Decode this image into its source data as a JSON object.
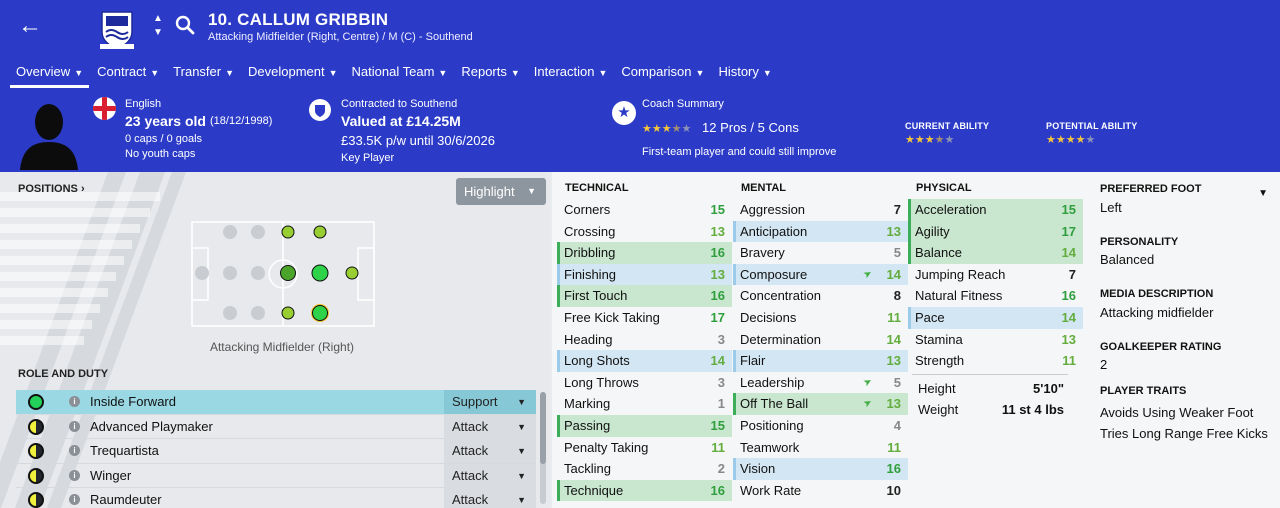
{
  "header": {
    "player_name": "10. CALLUM GRIBBIN",
    "subtitle": "Attacking Midfielder (Right, Centre) / M (C) - Southend",
    "back_icon": "back-arrow-icon",
    "crest_icon": "club-crest-icon"
  },
  "tabs": [
    {
      "label": "Overview",
      "active": true
    },
    {
      "label": "Contract"
    },
    {
      "label": "Transfer"
    },
    {
      "label": "Development"
    },
    {
      "label": "National Team"
    },
    {
      "label": "Reports"
    },
    {
      "label": "Interaction"
    },
    {
      "label": "Comparison"
    },
    {
      "label": "History"
    }
  ],
  "info": {
    "nationality": "English",
    "age": "23 years old",
    "dob": "(18/12/1998)",
    "caps": "0 caps / 0 goals",
    "youth_caps": "No youth caps",
    "contract_label": "Contracted to Southend",
    "value": "Valued at £14.25M",
    "wage": "£33.5K p/w until 30/6/2026",
    "squad_status": "Key Player",
    "coach_label": "Coach Summary",
    "coach_pros": "12 Pros / 5 Cons",
    "coach_desc": "First-team player and could still improve",
    "coach_stars": 3.5,
    "current_ability_label": "CURRENT ABILITY",
    "current_ability_stars": 3.5,
    "potential_ability_label": "POTENTIAL ABILITY",
    "potential_ability_stars": 4
  },
  "positions": {
    "label": "POSITIONS ›",
    "highlight_label": "Highlight",
    "caption": "Attacking Midfielder (Right)"
  },
  "roles": {
    "label": "ROLE AND DUTY",
    "items": [
      {
        "name": "Inside Forward",
        "duty": "Support",
        "ring": "full",
        "selected": true
      },
      {
        "name": "Advanced Playmaker",
        "duty": "Attack",
        "ring": "half"
      },
      {
        "name": "Trequartista",
        "duty": "Attack",
        "ring": "half"
      },
      {
        "name": "Winger",
        "duty": "Attack",
        "ring": "half"
      },
      {
        "name": "Raumdeuter",
        "duty": "Attack",
        "ring": "half"
      }
    ]
  },
  "technical": {
    "label": "TECHNICAL",
    "items": [
      {
        "name": "Corners",
        "value": 15,
        "hl": "",
        "arrow": false
      },
      {
        "name": "Crossing",
        "value": 13,
        "hl": "",
        "arrow": false
      },
      {
        "name": "Dribbling",
        "value": 16,
        "hl": "green",
        "arrow": false
      },
      {
        "name": "Finishing",
        "value": 13,
        "hl": "blue",
        "arrow": false
      },
      {
        "name": "First Touch",
        "value": 16,
        "hl": "green",
        "arrow": false
      },
      {
        "name": "Free Kick Taking",
        "value": 17,
        "hl": "",
        "arrow": false
      },
      {
        "name": "Heading",
        "value": 3,
        "hl": "",
        "arrow": false
      },
      {
        "name": "Long Shots",
        "value": 14,
        "hl": "blue",
        "arrow": false
      },
      {
        "name": "Long Throws",
        "value": 3,
        "hl": "",
        "arrow": false
      },
      {
        "name": "Marking",
        "value": 1,
        "hl": "",
        "arrow": false
      },
      {
        "name": "Passing",
        "value": 15,
        "hl": "green",
        "arrow": false
      },
      {
        "name": "Penalty Taking",
        "value": 11,
        "hl": "",
        "arrow": false
      },
      {
        "name": "Tackling",
        "value": 2,
        "hl": "",
        "arrow": false
      },
      {
        "name": "Technique",
        "value": 16,
        "hl": "green",
        "arrow": false
      }
    ]
  },
  "mental": {
    "label": "MENTAL",
    "items": [
      {
        "name": "Aggression",
        "value": 7,
        "hl": "",
        "arrow": false
      },
      {
        "name": "Anticipation",
        "value": 13,
        "hl": "blue",
        "arrow": false
      },
      {
        "name": "Bravery",
        "value": 5,
        "hl": "",
        "arrow": false
      },
      {
        "name": "Composure",
        "value": 14,
        "hl": "blue",
        "arrow": true
      },
      {
        "name": "Concentration",
        "value": 8,
        "hl": "",
        "arrow": false
      },
      {
        "name": "Decisions",
        "value": 11,
        "hl": "",
        "arrow": false
      },
      {
        "name": "Determination",
        "value": 14,
        "hl": "",
        "arrow": false
      },
      {
        "name": "Flair",
        "value": 13,
        "hl": "blue",
        "arrow": false
      },
      {
        "name": "Leadership",
        "value": 5,
        "hl": "",
        "arrow": true
      },
      {
        "name": "Off The Ball",
        "value": 13,
        "hl": "green",
        "arrow": true
      },
      {
        "name": "Positioning",
        "value": 4,
        "hl": "",
        "arrow": false
      },
      {
        "name": "Teamwork",
        "value": 11,
        "hl": "",
        "arrow": false
      },
      {
        "name": "Vision",
        "value": 16,
        "hl": "blue",
        "arrow": false
      },
      {
        "name": "Work Rate",
        "value": 10,
        "hl": "",
        "arrow": false
      }
    ]
  },
  "physical": {
    "label": "PHYSICAL",
    "items": [
      {
        "name": "Acceleration",
        "value": 15,
        "hl": "green",
        "arrow": false
      },
      {
        "name": "Agility",
        "value": 17,
        "hl": "green",
        "arrow": false
      },
      {
        "name": "Balance",
        "value": 14,
        "hl": "green",
        "arrow": false
      },
      {
        "name": "Jumping Reach",
        "value": 7,
        "hl": "",
        "arrow": false
      },
      {
        "name": "Natural Fitness",
        "value": 16,
        "hl": "",
        "arrow": false
      },
      {
        "name": "Pace",
        "value": 14,
        "hl": "blue",
        "arrow": false
      },
      {
        "name": "Stamina",
        "value": 13,
        "hl": "",
        "arrow": false
      },
      {
        "name": "Strength",
        "value": 11,
        "hl": "",
        "arrow": false
      }
    ],
    "height_label": "Height",
    "height": "5'10\"",
    "weight_label": "Weight",
    "weight": "11 st 4 lbs"
  },
  "right_info": {
    "foot_label": "PREFERRED FOOT",
    "foot": "Left",
    "personality_label": "PERSONALITY",
    "personality": "Balanced",
    "media_label": "MEDIA DESCRIPTION",
    "media": "Attacking midfielder",
    "gk_label": "GOALKEEPER RATING",
    "gk": "2",
    "traits_label": "PLAYER TRAITS",
    "traits": [
      "Avoids Using Weaker Foot",
      "Tries Long Range Free Kicks"
    ]
  },
  "colors": {
    "header_bg": "#2b3bc7",
    "attr_green": "#2f9f3d",
    "highlight_green": "#c9e6cf",
    "highlight_blue": "#d3e6f3",
    "role_selected": "#9ad8e4",
    "star": "#f4c53b"
  }
}
